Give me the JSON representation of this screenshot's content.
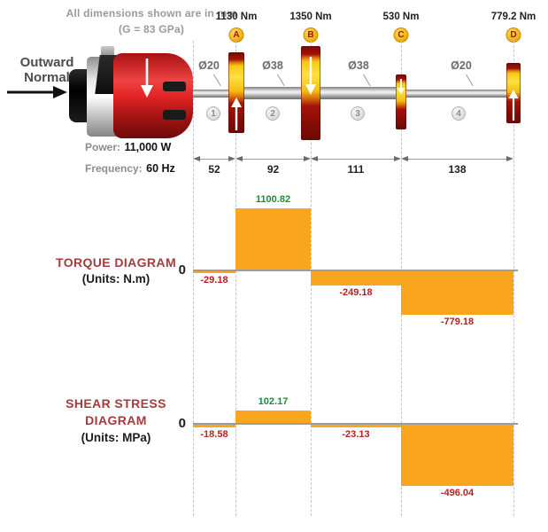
{
  "annotations": {
    "dimensions_note": "All dimensions shown are in mm",
    "shear_modulus": "(G = 83 GPa)",
    "outward_normal": "Outward\nNormal",
    "power_label": "Power:",
    "power_value": "11,000 W",
    "frequency_label": "Frequency:",
    "frequency_value": "60 Hz"
  },
  "shaft": {
    "stations": [
      {
        "id": "A",
        "torque": "1130 Nm"
      },
      {
        "id": "B",
        "torque": "1350 Nm"
      },
      {
        "id": "C",
        "torque": "530 Nm"
      },
      {
        "id": "D",
        "torque": "779.2 Nm"
      }
    ],
    "segments": [
      {
        "number": "1",
        "diameter": "Ø20",
        "length": "52"
      },
      {
        "number": "2",
        "diameter": "Ø38",
        "length": "92"
      },
      {
        "number": "3",
        "diameter": "Ø38",
        "length": "111"
      },
      {
        "number": "4",
        "diameter": "Ø20",
        "length": "138"
      }
    ]
  },
  "torque_diagram": {
    "title": "TORQUE  DIAGRAM",
    "units": "(Units: N.m)",
    "zero": "0"
  },
  "shear_diagram": {
    "title_line1": "SHEAR  STRESS",
    "title_line2": "DIAGRAM",
    "units": "(Units: MPa)",
    "zero": "0"
  },
  "colors": {
    "bar_orange": "#F9A51D",
    "value_positive": "#1F8A3B",
    "value_negative": "#B22222",
    "header_red": "#A33C3C",
    "gear_red": "#8E0F0A",
    "gear_gold": "#F6CB15",
    "circle_gold": "#F2B01E"
  },
  "chart_data": [
    {
      "type": "bar",
      "title": "TORQUE DIAGRAM",
      "ylabel": "Torque",
      "units": "N.m",
      "categories": [
        "segment 1",
        "segment 2",
        "segment 3",
        "segment 4"
      ],
      "segment_lengths_mm": [
        52,
        92,
        111,
        138
      ],
      "values": [
        -29.18,
        1100.82,
        -249.18,
        -779.18
      ],
      "baseline": 0,
      "grid": "dashed vertical at stations A-D",
      "legend": "none"
    },
    {
      "type": "bar",
      "title": "SHEAR STRESS DIAGRAM",
      "ylabel": "Shear stress",
      "units": "MPa",
      "categories": [
        "segment 1",
        "segment 2",
        "segment 3",
        "segment 4"
      ],
      "segment_lengths_mm": [
        52,
        92,
        111,
        138
      ],
      "values": [
        -18.58,
        102.17,
        -23.13,
        -496.04
      ],
      "baseline": 0,
      "grid": "dashed vertical at stations A-D",
      "legend": "none"
    }
  ]
}
